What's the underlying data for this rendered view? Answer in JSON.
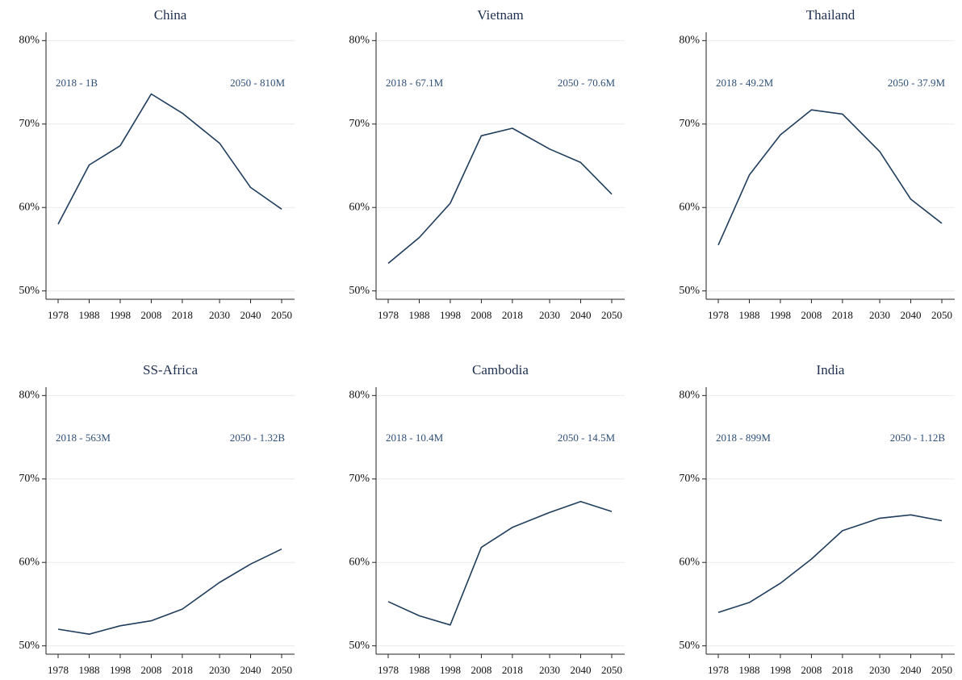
{
  "chart_data": [
    {
      "type": "line",
      "title": "China",
      "annotations": [
        "2018 - 1B",
        "2050 - 810M"
      ],
      "x": [
        1978,
        1988,
        1998,
        2008,
        2018,
        2030,
        2040,
        2050
      ],
      "values": [
        58.0,
        65.1,
        67.4,
        73.6,
        71.3,
        67.7,
        62.4,
        59.8
      ],
      "color": "#1f3d5c",
      "xlim": [
        1978,
        2050
      ],
      "xticks": [
        1978,
        1988,
        1998,
        2008,
        2018,
        2030,
        2040,
        2050
      ],
      "ylim": [
        49,
        81
      ],
      "yticks": [
        {
          "value": 50,
          "label": "50%"
        },
        {
          "value": 60,
          "label": "60%"
        },
        {
          "value": 70,
          "label": "70%"
        },
        {
          "value": 80,
          "label": "80%"
        }
      ],
      "grid": true
    },
    {
      "type": "line",
      "title": "Vietnam",
      "annotations": [
        "2018 - 67.1M",
        "2050 - 70.6M"
      ],
      "x": [
        1978,
        1988,
        1998,
        2008,
        2018,
        2030,
        2040,
        2050
      ],
      "values": [
        53.3,
        56.4,
        60.5,
        68.6,
        69.5,
        67.0,
        65.4,
        61.6
      ],
      "color": "#1f3d5c",
      "xlim": [
        1978,
        2050
      ],
      "xticks": [
        1978,
        1988,
        1998,
        2008,
        2018,
        2030,
        2040,
        2050
      ],
      "ylim": [
        49,
        81
      ],
      "yticks": [
        {
          "value": 50,
          "label": "50%"
        },
        {
          "value": 60,
          "label": "60%"
        },
        {
          "value": 70,
          "label": "70%"
        },
        {
          "value": 80,
          "label": "80%"
        }
      ],
      "grid": true
    },
    {
      "type": "line",
      "title": "Thailand",
      "annotations": [
        "2018 - 49.2M",
        "2050 - 37.9M"
      ],
      "x": [
        1978,
        1988,
        1998,
        2008,
        2018,
        2030,
        2040,
        2050
      ],
      "values": [
        55.5,
        63.9,
        68.7,
        71.7,
        71.2,
        66.7,
        61.0,
        58.1
      ],
      "color": "#1f3d5c",
      "xlim": [
        1978,
        2050
      ],
      "xticks": [
        1978,
        1988,
        1998,
        2008,
        2018,
        2030,
        2040,
        2050
      ],
      "ylim": [
        49,
        81
      ],
      "yticks": [
        {
          "value": 50,
          "label": "50%"
        },
        {
          "value": 60,
          "label": "60%"
        },
        {
          "value": 70,
          "label": "70%"
        },
        {
          "value": 80,
          "label": "80%"
        }
      ],
      "grid": true
    },
    {
      "type": "line",
      "title": "SS-Africa",
      "annotations": [
        "2018 - 563M",
        "2050 - 1.32B"
      ],
      "x": [
        1978,
        1988,
        1998,
        2008,
        2018,
        2030,
        2040,
        2050
      ],
      "values": [
        52.0,
        51.4,
        52.4,
        53.0,
        54.4,
        57.6,
        59.8,
        61.6
      ],
      "color": "#1f3d5c",
      "xlim": [
        1978,
        2050
      ],
      "xticks": [
        1978,
        1988,
        1998,
        2008,
        2018,
        2030,
        2040,
        2050
      ],
      "ylim": [
        49,
        81
      ],
      "yticks": [
        {
          "value": 50,
          "label": "50%"
        },
        {
          "value": 60,
          "label": "60%"
        },
        {
          "value": 70,
          "label": "70%"
        },
        {
          "value": 80,
          "label": "80%"
        }
      ],
      "grid": true
    },
    {
      "type": "line",
      "title": "Cambodia",
      "annotations": [
        "2018 - 10.4M",
        "2050 - 14.5M"
      ],
      "x": [
        1978,
        1988,
        1998,
        2008,
        2018,
        2030,
        2040,
        2050
      ],
      "values": [
        55.3,
        53.6,
        52.5,
        61.8,
        64.2,
        66.0,
        67.3,
        66.1
      ],
      "color": "#1f3d5c",
      "xlim": [
        1978,
        2050
      ],
      "xticks": [
        1978,
        1988,
        1998,
        2008,
        2018,
        2030,
        2040,
        2050
      ],
      "ylim": [
        49,
        81
      ],
      "yticks": [
        {
          "value": 50,
          "label": "50%"
        },
        {
          "value": 60,
          "label": "60%"
        },
        {
          "value": 70,
          "label": "70%"
        },
        {
          "value": 80,
          "label": "80%"
        }
      ],
      "grid": true
    },
    {
      "type": "line",
      "title": "India",
      "annotations": [
        "2018 - 899M",
        "2050 - 1.12B"
      ],
      "x": [
        1978,
        1988,
        1998,
        2008,
        2018,
        2030,
        2040,
        2050
      ],
      "values": [
        54.0,
        55.2,
        57.5,
        60.4,
        63.8,
        65.3,
        65.7,
        65.0
      ],
      "color": "#1f3d5c",
      "xlim": [
        1978,
        2050
      ],
      "xticks": [
        1978,
        1988,
        1998,
        2008,
        2018,
        2030,
        2040,
        2050
      ],
      "ylim": [
        49,
        81
      ],
      "yticks": [
        {
          "value": 50,
          "label": "50%"
        },
        {
          "value": 60,
          "label": "60%"
        },
        {
          "value": 70,
          "label": "70%"
        },
        {
          "value": 80,
          "label": "80%"
        }
      ],
      "grid": true
    }
  ]
}
